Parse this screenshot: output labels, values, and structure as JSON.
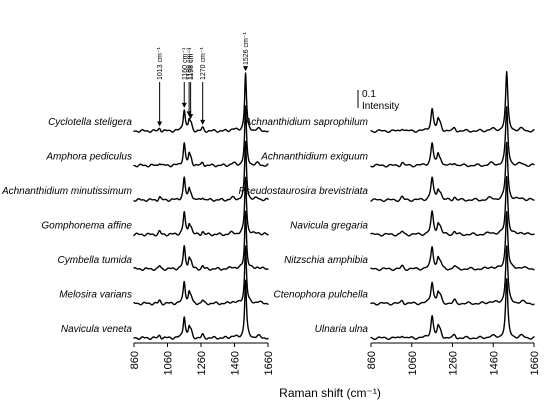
{
  "chart_data": {
    "type": "line",
    "panels": [
      {
        "series": [
          {
            "name": "Cyclotella steligera"
          },
          {
            "name": "Amphora pediculus"
          },
          {
            "name": "Achnanthidium minutissimum"
          },
          {
            "name": "Gomphonema affine"
          },
          {
            "name": "Cymbella tumida"
          },
          {
            "name": "Melosira varians"
          },
          {
            "name": "Navicula veneta"
          }
        ],
        "xlim": [
          860,
          1660
        ],
        "x_ticks": [
          "860",
          "1060",
          "1260",
          "1460",
          "1660"
        ],
        "peak_annotations": [
          {
            "text": "1013 cm⁻¹",
            "x": 1013
          },
          {
            "text": "1160 cm⁻¹",
            "x": 1160
          },
          {
            "text": "1189 cm⁻¹",
            "x": 1189
          },
          {
            "text": "1198 cm⁻¹",
            "x": 1198
          },
          {
            "text": "1270 cm⁻¹",
            "x": 1270
          },
          {
            "text": "1526 cm⁻¹",
            "x": 1526
          }
        ]
      },
      {
        "series": [
          {
            "name": "Achnanthidium saprophilum"
          },
          {
            "name": "Achnanthidium exiguum"
          },
          {
            "name": "Pseudostaurosira brevistriata"
          },
          {
            "name": "Navicula gregaria"
          },
          {
            "name": "Nitzschia amphibia"
          },
          {
            "name": "Ctenophora pulchella"
          },
          {
            "name": "Ulnaria ulna"
          }
        ],
        "xlim": [
          860,
          1660
        ],
        "x_ticks": [
          "860",
          "1060",
          "1260",
          "1460",
          "1660"
        ]
      }
    ],
    "xlabel": "Raman shift (cm⁻¹)",
    "scale_bar": {
      "value": "0.1",
      "label": "Intensity"
    },
    "peaks": {
      "1013": 0.05,
      "1160": 0.38,
      "1526": 1.0
    }
  }
}
